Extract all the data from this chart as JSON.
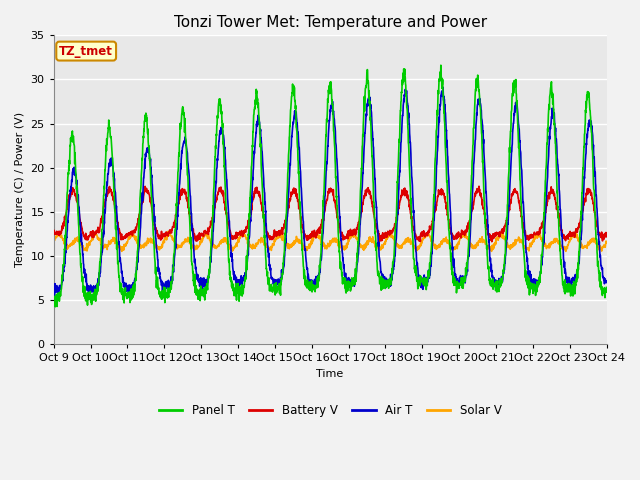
{
  "title": "Tonzi Tower Met: Temperature and Power",
  "xlabel": "Time",
  "ylabel": "Temperature (C) / Power (V)",
  "ylim": [
    0,
    35
  ],
  "xtick_labels": [
    "Oct 9",
    "Oct 10",
    "Oct 11",
    "Oct 12",
    "Oct 13",
    "Oct 14",
    "Oct 15",
    "Oct 16",
    "Oct 17",
    "Oct 18",
    "Oct 19",
    "Oct 20",
    "Oct 21",
    "Oct 22",
    "Oct 23",
    "Oct 24"
  ],
  "legend": [
    "Panel T",
    "Battery V",
    "Air T",
    "Solar V"
  ],
  "legend_colors": [
    "#00CC00",
    "#DD0000",
    "#0000CC",
    "#FFA500"
  ],
  "line_colors": {
    "panel_t": "#00CC00",
    "battery_v": "#DD0000",
    "air_t": "#0000CC",
    "solar_v": "#FFA500"
  },
  "line_width": 1.2,
  "plot_bg": "#E8E8E8",
  "fig_bg": "#F2F2F2",
  "grid_color": "#FFFFFF",
  "title_fontsize": 11,
  "axis_fontsize": 8,
  "tick_fontsize": 8,
  "label_box_text": "TZ_tmet",
  "label_box_color": "#FFFFCC",
  "label_box_edge": "#CC8800",
  "label_text_color": "#CC0000"
}
